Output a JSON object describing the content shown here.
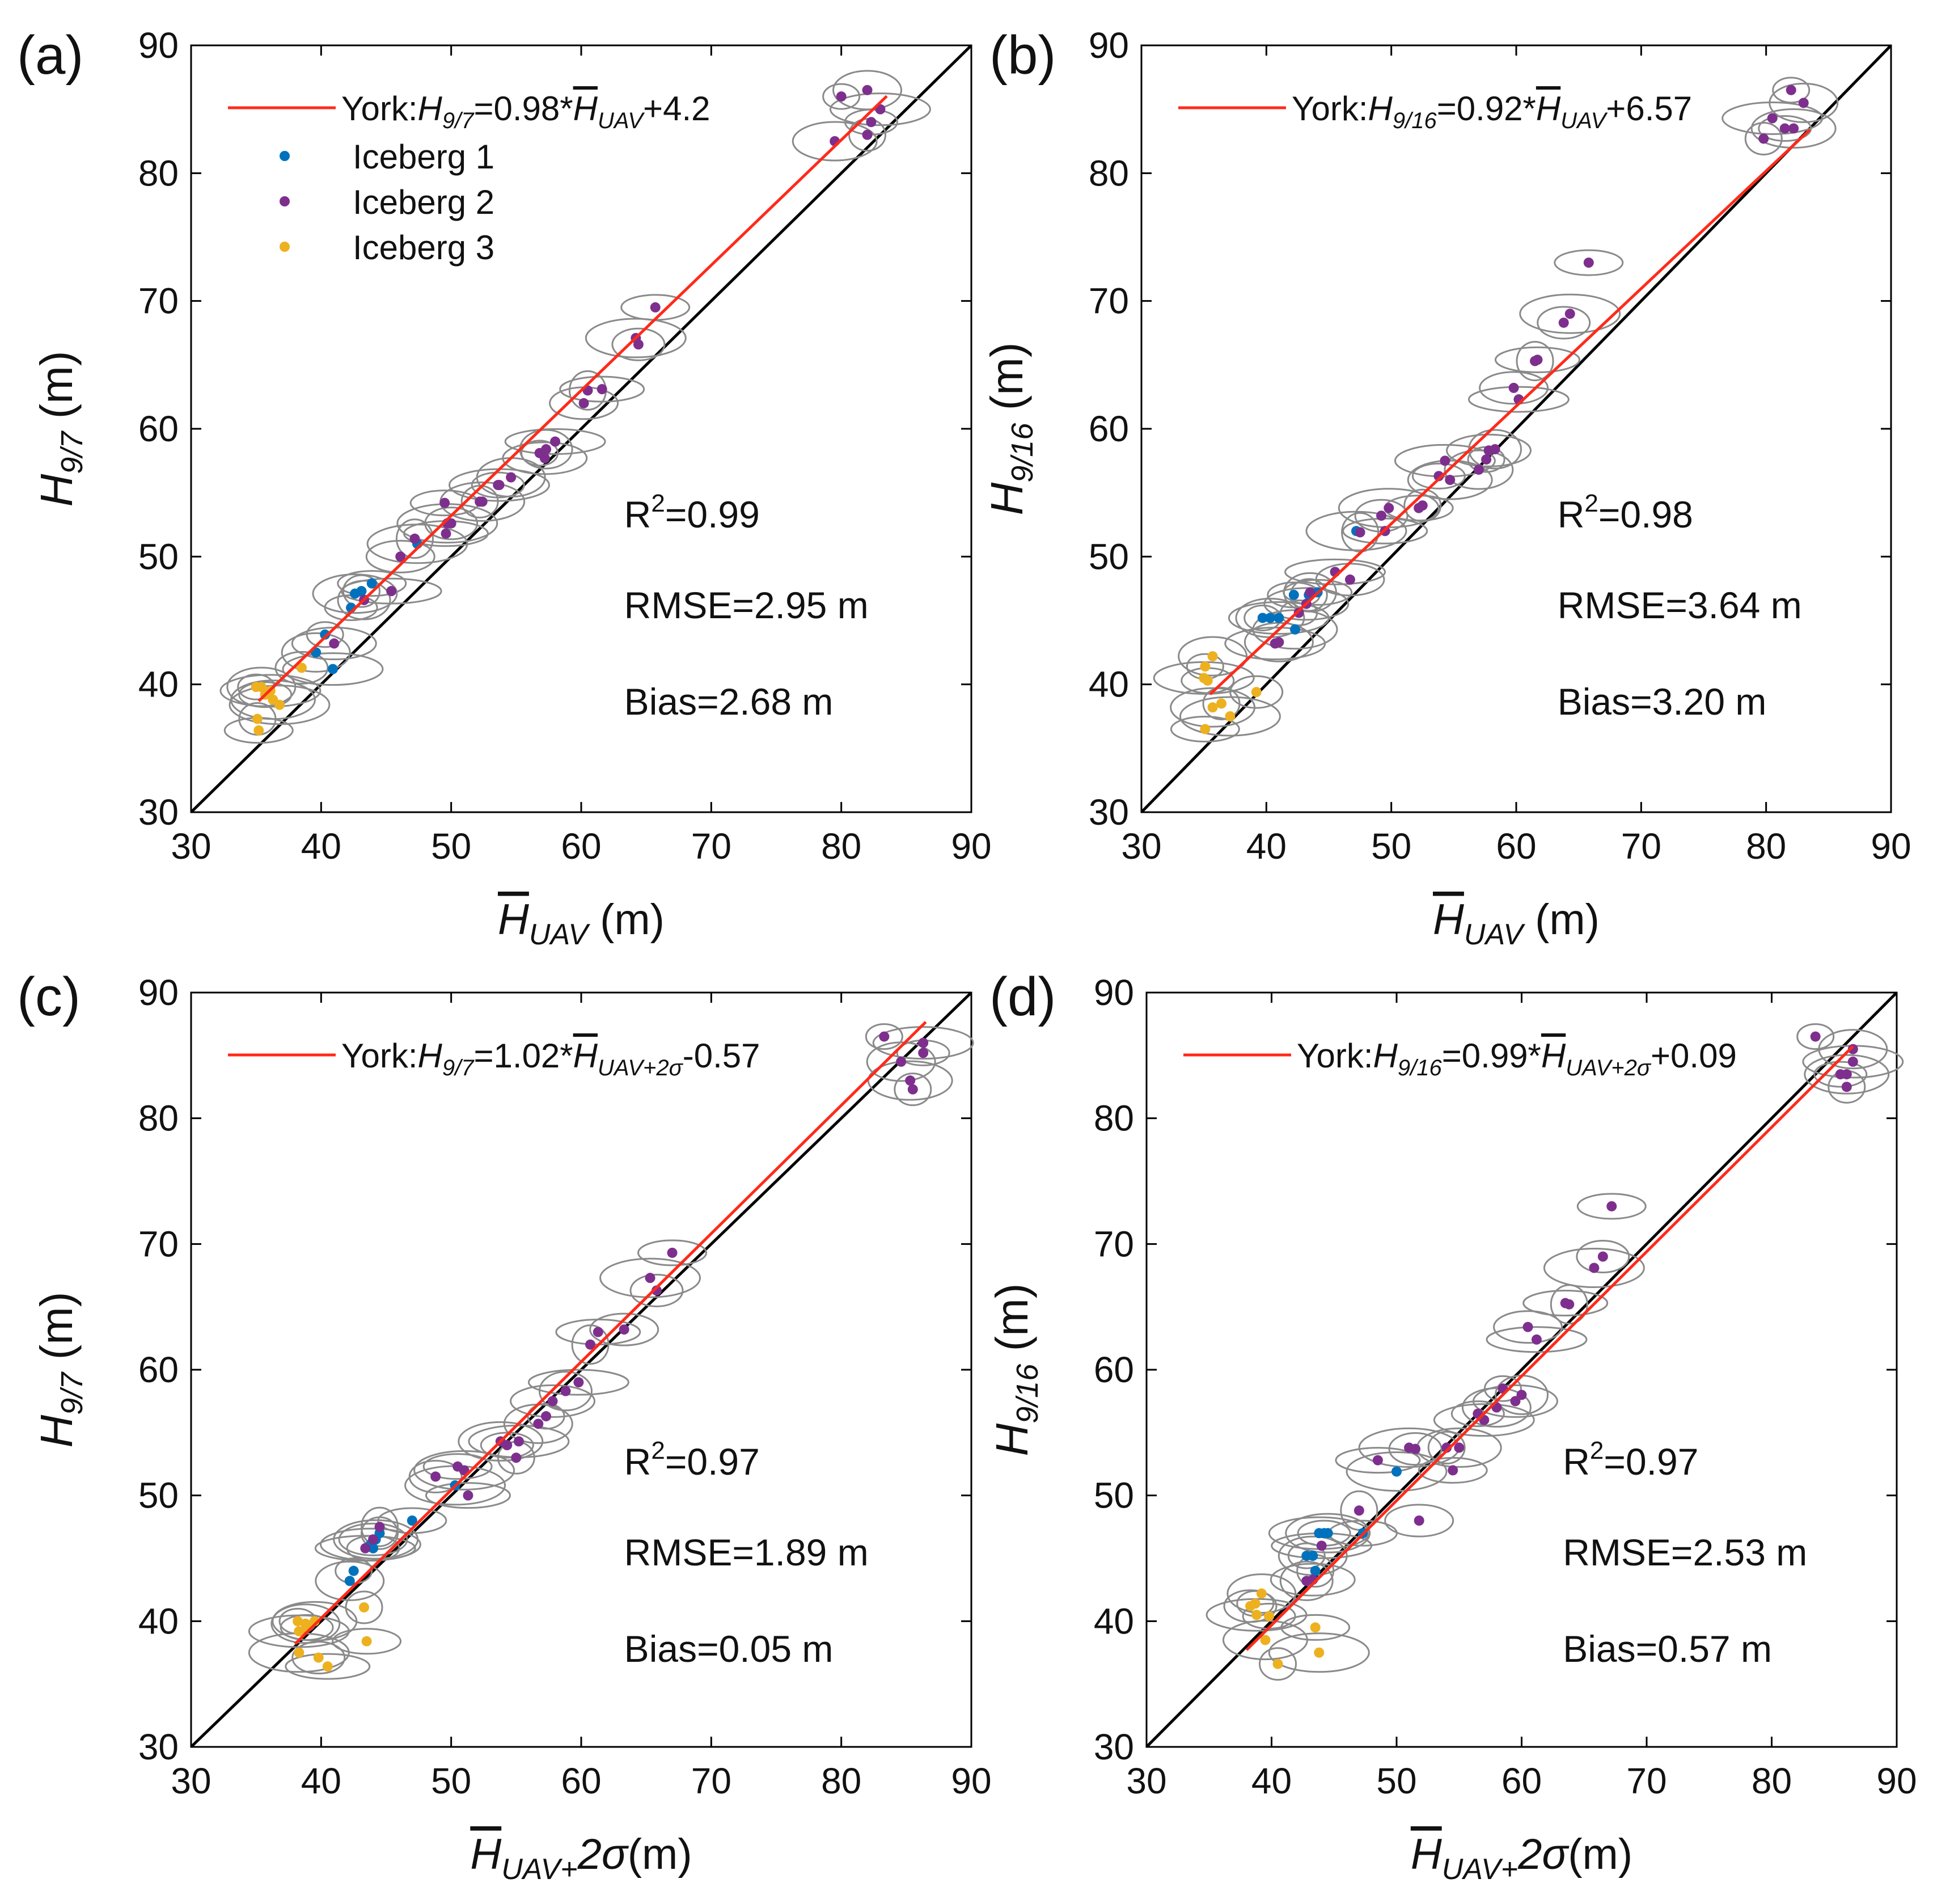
{
  "chart_data": [
    {
      "type": "scatter",
      "panel_label": "(a)",
      "ylabel": {
        "base": "H",
        "sub": "9/7",
        "tail": " (m)"
      },
      "xlabel": {
        "bar": "H",
        "sub": "UAV",
        "tail": " (m)"
      },
      "xlim": [
        30,
        90
      ],
      "ylim": [
        30,
        90
      ],
      "xticks": [
        30,
        40,
        50,
        60,
        70,
        80,
        90
      ],
      "yticks": [
        30,
        40,
        50,
        60,
        70,
        80,
        90
      ],
      "legend": {
        "placement": "top-left",
        "fit_label": {
          "pre": "York:",
          "lhs": "H",
          "lhs_sub": "9/7",
          "mid": "=0.98*",
          "bar": "H",
          "bar_sub": "UAV",
          "post": "+4.2"
        },
        "series_names": [
          "Iceberg 1",
          "Iceberg 2",
          "Iceberg 3"
        ]
      },
      "stats": {
        "r2_prefix": "R",
        "r2_sup": "2",
        "r2_value": "=0.99",
        "rmse": "RMSE=2.95 m",
        "bias": "Bias=2.68 m"
      },
      "fit_line": {
        "slope": 0.98,
        "intercept": 4.2,
        "x_range": [
          35.2,
          83.5
        ]
      },
      "one_to_one": true,
      "series": [
        {
          "name": "Iceberg 1",
          "points": [
            [
              40.3,
              43.9
            ],
            [
              39.6,
              42.5
            ],
            [
              40.9,
              41.2
            ],
            [
              42.3,
              46.0
            ],
            [
              42.6,
              47.1
            ],
            [
              43.1,
              47.3
            ],
            [
              43.9,
              47.9
            ],
            [
              47.4,
              51.0
            ]
          ]
        },
        {
          "name": "Iceberg 2",
          "points": [
            [
              80.0,
              86.0
            ],
            [
              82.0,
              86.5
            ],
            [
              83.0,
              85.0
            ],
            [
              82.3,
              84.0
            ],
            [
              79.5,
              82.5
            ],
            [
              82.0,
              83.0
            ],
            [
              65.7,
              69.5
            ],
            [
              64.2,
              67.1
            ],
            [
              64.4,
              66.6
            ],
            [
              61.6,
              63.1
            ],
            [
              60.5,
              63.0
            ],
            [
              60.2,
              62.0
            ],
            [
              58.0,
              59.0
            ],
            [
              57.3,
              58.4
            ],
            [
              57.2,
              57.7
            ],
            [
              56.8,
              58.1
            ],
            [
              54.6,
              56.2
            ],
            [
              53.7,
              55.6
            ],
            [
              53.6,
              55.6
            ],
            [
              52.4,
              54.3
            ],
            [
              52.2,
              54.3
            ],
            [
              49.5,
              54.2
            ],
            [
              49.7,
              52.6
            ],
            [
              50.0,
              52.6
            ],
            [
              49.6,
              51.8
            ],
            [
              47.2,
              51.4
            ],
            [
              46.1,
              50.0
            ],
            [
              45.4,
              47.3
            ],
            [
              43.3,
              46.6
            ],
            [
              41.0,
              43.2
            ]
          ]
        },
        {
          "name": "Iceberg 3",
          "points": [
            [
              35.0,
              39.8
            ],
            [
              35.4,
              39.8
            ],
            [
              36.1,
              39.5
            ],
            [
              35.7,
              39.2
            ],
            [
              36.3,
              38.8
            ],
            [
              35.1,
              37.3
            ],
            [
              35.2,
              36.4
            ],
            [
              36.8,
              38.4
            ],
            [
              38.5,
              41.3
            ]
          ]
        }
      ]
    },
    {
      "type": "scatter",
      "panel_label": "(b)",
      "ylabel": {
        "base": "H",
        "sub": "9/16",
        "tail": " (m)"
      },
      "xlabel": {
        "bar": "H",
        "sub": "UAV",
        "tail": " (m)"
      },
      "xlim": [
        30,
        90
      ],
      "ylim": [
        30,
        90
      ],
      "xticks": [
        30,
        40,
        50,
        60,
        70,
        80,
        90
      ],
      "yticks": [
        30,
        40,
        50,
        60,
        70,
        80,
        90
      ],
      "legend": {
        "placement": "top-left",
        "fit_label": {
          "pre": "York:",
          "lhs": "H",
          "lhs_sub": "9/16",
          "mid": "=0.92*",
          "bar": "H",
          "bar_sub": "UAV",
          "post": "+6.57"
        }
      },
      "stats": {
        "r2_prefix": "R",
        "r2_sup": "2",
        "r2_value": "=0.98",
        "rmse": "RMSE=3.64 m",
        "bias": "Bias=3.20 m"
      },
      "fit_line": {
        "slope": 0.92,
        "intercept": 6.57,
        "x_range": [
          35.5,
          83.5
        ]
      },
      "one_to_one": true,
      "series": [
        {
          "name": "Iceberg 1",
          "points": [
            [
              39.7,
              45.2
            ],
            [
              40.3,
              45.2
            ],
            [
              41.0,
              45.2
            ],
            [
              42.2,
              47.0
            ],
            [
              42.3,
              44.3
            ],
            [
              43.4,
              47.0
            ],
            [
              44.1,
              47.2
            ],
            [
              47.2,
              52.0
            ]
          ]
        },
        {
          "name": "Iceberg 2",
          "points": [
            [
              82.0,
              86.5
            ],
            [
              83.0,
              85.5
            ],
            [
              80.5,
              84.3
            ],
            [
              81.5,
              83.5
            ],
            [
              82.2,
              83.5
            ],
            [
              79.8,
              82.7
            ],
            [
              65.8,
              73.0
            ],
            [
              64.3,
              69.0
            ],
            [
              63.8,
              68.3
            ],
            [
              61.7,
              65.4
            ],
            [
              61.5,
              65.3
            ],
            [
              59.8,
              63.2
            ],
            [
              60.2,
              62.3
            ],
            [
              58.3,
              58.4
            ],
            [
              57.8,
              58.3
            ],
            [
              57.6,
              57.6
            ],
            [
              57.0,
              56.8
            ],
            [
              54.3,
              57.5
            ],
            [
              53.8,
              56.3
            ],
            [
              54.7,
              56.0
            ],
            [
              52.5,
              54.0
            ],
            [
              52.2,
              53.8
            ],
            [
              49.8,
              53.8
            ],
            [
              49.2,
              53.2
            ],
            [
              49.5,
              52.0
            ],
            [
              47.5,
              51.9
            ],
            [
              46.7,
              48.2
            ],
            [
              45.5,
              48.8
            ],
            [
              43.5,
              47.2
            ],
            [
              43.2,
              46.3
            ],
            [
              42.6,
              45.6
            ],
            [
              41.0,
              43.3
            ],
            [
              40.7,
              43.2
            ]
          ]
        },
        {
          "name": "Iceberg 3",
          "points": [
            [
              35.1,
              41.4
            ],
            [
              35.7,
              42.2
            ],
            [
              35.0,
              40.5
            ],
            [
              35.3,
              40.3
            ],
            [
              35.7,
              38.2
            ],
            [
              36.4,
              38.5
            ],
            [
              35.1,
              36.5
            ],
            [
              37.1,
              37.5
            ],
            [
              39.2,
              39.4
            ]
          ]
        }
      ]
    },
    {
      "type": "scatter",
      "panel_label": "(c)",
      "ylabel": {
        "base": "H",
        "sub": "9/7",
        "tail": " (m)"
      },
      "xlabel": {
        "bar": "H",
        "sub": "UAV+",
        "italic_tail": "2σ",
        "tail": "(m)"
      },
      "xlim": [
        30,
        90
      ],
      "ylim": [
        30,
        90
      ],
      "xticks": [
        30,
        40,
        50,
        60,
        70,
        80,
        90
      ],
      "yticks": [
        30,
        40,
        50,
        60,
        70,
        80,
        90
      ],
      "legend": {
        "placement": "top-left",
        "fit_label": {
          "pre": "York:",
          "lhs": "H",
          "lhs_sub": "9/7",
          "mid": "=1.02*",
          "bar": "H",
          "bar_sub": "UAV+2σ",
          "post": "-0.57"
        }
      },
      "stats": {
        "r2_prefix": "R",
        "r2_sup": "2",
        "r2_value": "=0.97",
        "rmse": "RMSE=1.89 m",
        "bias": "Bias=0.05 m"
      },
      "fit_line": {
        "slope": 1.02,
        "intercept": -0.57,
        "x_range": [
          38.0,
          86.5
        ]
      },
      "one_to_one": true,
      "series": [
        {
          "name": "Iceberg 1",
          "points": [
            [
              42.5,
              44.0
            ],
            [
              42.2,
              43.2
            ],
            [
              43.8,
              46.1
            ],
            [
              44.0,
              45.8
            ],
            [
              44.2,
              46.5
            ],
            [
              44.5,
              47.0
            ],
            [
              47.0,
              48.0
            ],
            [
              50.3,
              50.8
            ]
          ]
        },
        {
          "name": "Iceberg 2",
          "points": [
            [
              83.3,
              86.5
            ],
            [
              84.6,
              84.5
            ],
            [
              86.3,
              86.0
            ],
            [
              86.3,
              85.2
            ],
            [
              85.3,
              83.0
            ],
            [
              85.5,
              82.3
            ],
            [
              67.0,
              69.3
            ],
            [
              65.3,
              67.3
            ],
            [
              65.8,
              66.3
            ],
            [
              61.3,
              63.0
            ],
            [
              60.7,
              62.0
            ],
            [
              63.3,
              63.2
            ],
            [
              59.8,
              59.0
            ],
            [
              58.8,
              58.3
            ],
            [
              57.8,
              57.5
            ],
            [
              57.3,
              56.3
            ],
            [
              56.7,
              55.7
            ],
            [
              55.2,
              54.3
            ],
            [
              54.3,
              54.0
            ],
            [
              53.8,
              54.3
            ],
            [
              55.0,
              53.0
            ],
            [
              50.5,
              52.3
            ],
            [
              51.0,
              52.0
            ],
            [
              48.8,
              51.5
            ],
            [
              51.3,
              50.0
            ],
            [
              44.5,
              47.5
            ],
            [
              44.0,
              46.5
            ],
            [
              43.4,
              45.8
            ]
          ]
        },
        {
          "name": "Iceberg 3",
          "points": [
            [
              38.2,
              40.0
            ],
            [
              38.8,
              39.8
            ],
            [
              38.3,
              39.2
            ],
            [
              38.9,
              39.5
            ],
            [
              39.5,
              40.0
            ],
            [
              43.3,
              41.1
            ],
            [
              43.5,
              38.4
            ],
            [
              38.3,
              37.5
            ],
            [
              39.8,
              37.1
            ],
            [
              40.5,
              36.4
            ]
          ]
        }
      ]
    },
    {
      "type": "scatter",
      "panel_label": "(d)",
      "ylabel": {
        "base": "H",
        "sub": "9/16",
        "tail": " (m)"
      },
      "xlabel": {
        "bar": "H",
        "sub": "UAV+",
        "italic_tail": "2σ",
        "tail": "(m)"
      },
      "xlim": [
        30,
        90
      ],
      "ylim": [
        30,
        90
      ],
      "xticks": [
        30,
        40,
        50,
        60,
        70,
        80,
        90
      ],
      "yticks": [
        30,
        40,
        50,
        60,
        70,
        80,
        90
      ],
      "legend": {
        "placement": "top-left",
        "fit_label": {
          "pre": "York:",
          "lhs": "H",
          "lhs_sub": "9/16",
          "mid": "=0.99*",
          "bar": "H",
          "bar_sub": "UAV+2σ",
          "post": "+0.09"
        }
      },
      "stats": {
        "r2_prefix": "R",
        "r2_sup": "2",
        "r2_value": "=0.97",
        "rmse": "RMSE=2.53 m",
        "bias": "Bias=0.57 m"
      },
      "fit_line": {
        "slope": 0.99,
        "intercept": 0.09,
        "x_range": [
          38.0,
          86.5
        ]
      },
      "one_to_one": true,
      "series": [
        {
          "name": "Iceberg 1",
          "points": [
            [
              42.8,
              45.2
            ],
            [
              43.3,
              45.2
            ],
            [
              43.8,
              47.0
            ],
            [
              44.2,
              47.0
            ],
            [
              44.5,
              47.0
            ],
            [
              43.5,
              44.0
            ],
            [
              47.3,
              47.0
            ],
            [
              50.0,
              51.9
            ]
          ]
        },
        {
          "name": "Iceberg 2",
          "points": [
            [
              83.5,
              86.5
            ],
            [
              86.5,
              85.5
            ],
            [
              86.5,
              84.5
            ],
            [
              85.5,
              83.5
            ],
            [
              86.0,
              83.5
            ],
            [
              86.0,
              82.5
            ],
            [
              67.2,
              73.0
            ],
            [
              65.8,
              68.1
            ],
            [
              66.5,
              69.0
            ],
            [
              63.5,
              65.3
            ],
            [
              63.8,
              65.2
            ],
            [
              60.5,
              63.4
            ],
            [
              61.2,
              62.4
            ],
            [
              60.0,
              58.0
            ],
            [
              59.5,
              57.5
            ],
            [
              58.5,
              58.5
            ],
            [
              58.0,
              57.0
            ],
            [
              57.0,
              56.0
            ],
            [
              56.5,
              56.5
            ],
            [
              55.0,
              53.8
            ],
            [
              54.0,
              53.8
            ],
            [
              54.5,
              52.0
            ],
            [
              51.0,
              53.8
            ],
            [
              51.5,
              53.7
            ],
            [
              48.5,
              52.8
            ],
            [
              47.0,
              48.8
            ],
            [
              51.8,
              48.0
            ],
            [
              44.0,
              46.0
            ],
            [
              42.8,
              43.2
            ],
            [
              43.3,
              43.3
            ]
          ]
        },
        {
          "name": "Iceberg 3",
          "points": [
            [
              38.7,
              41.4
            ],
            [
              39.2,
              42.2
            ],
            [
              38.8,
              40.5
            ],
            [
              39.8,
              40.4
            ],
            [
              39.5,
              38.5
            ],
            [
              40.5,
              36.6
            ],
            [
              43.5,
              39.5
            ],
            [
              43.8,
              37.5
            ],
            [
              38.3,
              41.2
            ]
          ]
        }
      ]
    }
  ]
}
